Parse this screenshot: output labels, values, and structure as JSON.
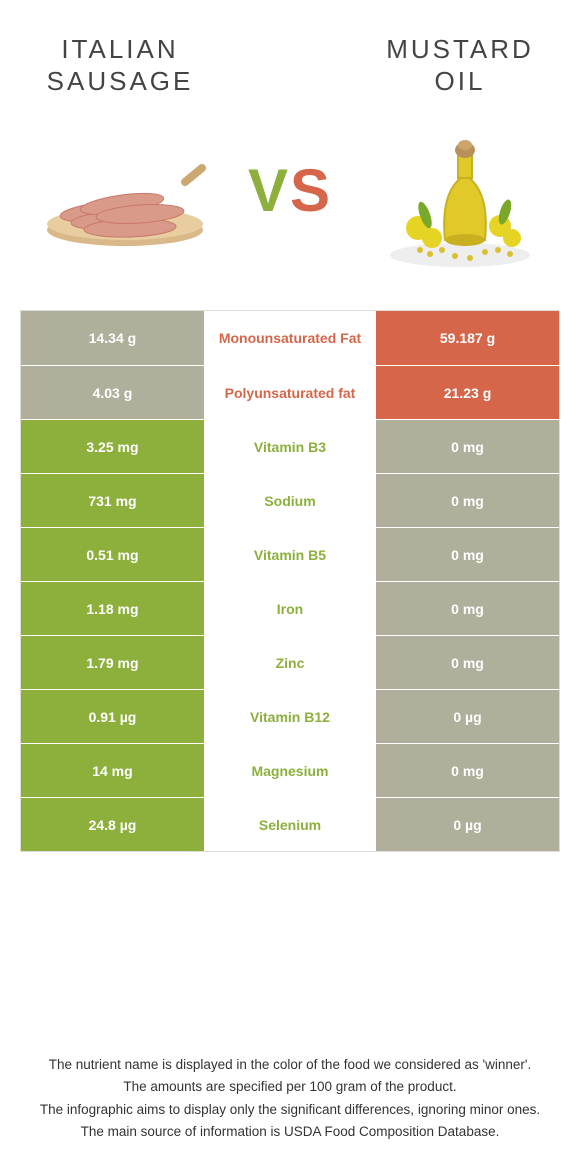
{
  "colors": {
    "left": "#8cb03b",
    "right": "#d6664a",
    "row_bg_left": "#8cb03b",
    "row_bg_right": "#d6664a",
    "neutral_cell": "#b0af9c",
    "background": "#ffffff",
    "heading_text": "#444444"
  },
  "foods": {
    "left": {
      "name": "ITALIAN SAUSAGE"
    },
    "right": {
      "name": "MUSTARD OIL"
    }
  },
  "vs": {
    "v": "V",
    "s": "S"
  },
  "rows": [
    {
      "name": "Monounsaturated Fat",
      "left": "14.34 g",
      "right": "59.187 g",
      "winner": "right"
    },
    {
      "name": "Polyunsaturated fat",
      "left": "4.03 g",
      "right": "21.23 g",
      "winner": "right"
    },
    {
      "name": "Vitamin B3",
      "left": "3.25 mg",
      "right": "0 mg",
      "winner": "left"
    },
    {
      "name": "Sodium",
      "left": "731 mg",
      "right": "0 mg",
      "winner": "left"
    },
    {
      "name": "Vitamin B5",
      "left": "0.51 mg",
      "right": "0 mg",
      "winner": "left"
    },
    {
      "name": "Iron",
      "left": "1.18 mg",
      "right": "0 mg",
      "winner": "left"
    },
    {
      "name": "Zinc",
      "left": "1.79 mg",
      "right": "0 mg",
      "winner": "left"
    },
    {
      "name": "Vitamin B12",
      "left": "0.91 µg",
      "right": "0 µg",
      "winner": "left"
    },
    {
      "name": "Magnesium",
      "left": "14 mg",
      "right": "0 mg",
      "winner": "left"
    },
    {
      "name": "Selenium",
      "left": "24.8 µg",
      "right": "0 µg",
      "winner": "left"
    }
  ],
  "footer": {
    "line1": "The nutrient name is displayed in the color of the food we considered as 'winner'.",
    "line2": "The amounts are specified per 100 gram of the product.",
    "line3": "The infographic aims to display only the significant differences, ignoring minor ones.",
    "line4": "The main source of information is USDA Food Composition Database."
  }
}
